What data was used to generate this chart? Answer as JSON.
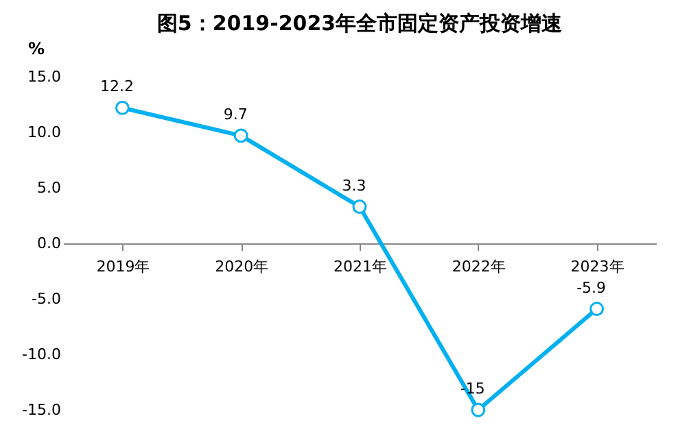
{
  "chart_data": {
    "type": "line",
    "title": "图5：2019-2023年全市固定资产投资增速",
    "ylabel": "%",
    "categories": [
      "2019年",
      "2020年",
      "2021年",
      "2022年",
      "2023年"
    ],
    "series": [
      {
        "color": "#00b0f0",
        "values": [
          12.2,
          9.7,
          3.3,
          -15,
          -5.9
        ]
      }
    ],
    "ylim": [
      -15,
      15
    ],
    "yticks": [
      {
        "value": -15,
        "label": "-15.0"
      },
      {
        "value": -10,
        "label": "-10.0"
      },
      {
        "value": -5,
        "label": "-5.0"
      },
      {
        "value": 0,
        "label": "0.0"
      },
      {
        "value": 5,
        "label": "5.0"
      },
      {
        "value": 10,
        "label": "10.0"
      },
      {
        "value": 15,
        "label": "15.0"
      }
    ],
    "data_labels": true,
    "marker": "circle",
    "line_style": "solid",
    "grid": false
  }
}
